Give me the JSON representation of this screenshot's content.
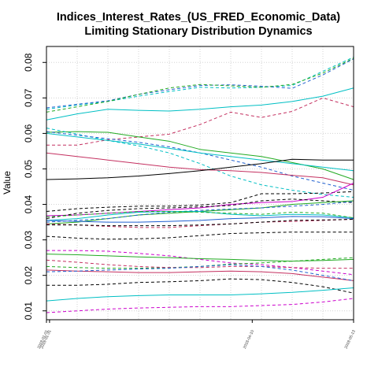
{
  "chart_data": {
    "type": "line",
    "title": "Indices_Interest_Rates_(US_FRED_Economic_Data)",
    "subtitle": "Limiting Stationary Distribution Dynamics",
    "xlabel": "",
    "ylabel": "Value",
    "ylim": [
      0.0075,
      0.0845
    ],
    "xlim": [
      0,
      10
    ],
    "y_ticks": [
      "0.01",
      "0.02",
      "0.03",
      "0.04",
      "0.05",
      "0.06",
      "0.07",
      "0.08"
    ],
    "x_ticks": [
      {
        "pos": 0,
        "label": "2018-01-01"
      },
      {
        "pos": 0.1,
        "label": "2018-01-31"
      },
      {
        "pos": 6.7,
        "label": "2018-04-10"
      },
      {
        "pos": 10,
        "label": "2018-05-13"
      }
    ],
    "grid": true,
    "x": [
      0,
      1,
      2,
      3,
      4,
      5,
      6,
      7,
      8,
      9,
      10
    ],
    "series": [
      {
        "color": "#00BFC4",
        "dash": "dashed",
        "values": [
          0.0668,
          0.068,
          0.069,
          0.0705,
          0.0718,
          0.073,
          0.0728,
          0.073,
          0.0735,
          0.0775,
          0.0815
        ]
      },
      {
        "color": "#00BFC4",
        "dash": "solid",
        "values": [
          0.0638,
          0.0655,
          0.0668,
          0.0665,
          0.0663,
          0.0668,
          0.0675,
          0.068,
          0.069,
          0.0705,
          0.0728
        ]
      },
      {
        "color": "#2060D0",
        "dash": "dashed",
        "values": [
          0.0672,
          0.0682,
          0.0692,
          0.071,
          0.0723,
          0.0735,
          0.0737,
          0.0733,
          0.0727,
          0.0765,
          0.081
        ]
      },
      {
        "color": "#22AA22",
        "dash": "dashed",
        "values": [
          0.066,
          0.0675,
          0.069,
          0.071,
          0.0728,
          0.0738,
          0.0734,
          0.073,
          0.0738,
          0.077,
          0.0812
        ]
      },
      {
        "color": "#C43060",
        "dash": "dashed",
        "values": [
          0.0567,
          0.0567,
          0.0582,
          0.059,
          0.0598,
          0.0625,
          0.066,
          0.0645,
          0.0662,
          0.07,
          0.0675
        ]
      },
      {
        "color": "#22AA22",
        "dash": "solid",
        "values": [
          0.0603,
          0.0605,
          0.0603,
          0.059,
          0.0578,
          0.0555,
          0.0545,
          0.0535,
          0.0518,
          0.05,
          0.047
        ]
      },
      {
        "color": "#00BFC4",
        "dash": "dashed",
        "values": [
          0.0615,
          0.0598,
          0.058,
          0.0565,
          0.0545,
          0.0515,
          0.048,
          0.0455,
          0.044,
          0.0428,
          0.042
        ]
      },
      {
        "color": "#2060D0",
        "dash": "dashed",
        "values": [
          0.0605,
          0.0595,
          0.0585,
          0.0575,
          0.0562,
          0.0545,
          0.0525,
          0.0505,
          0.048,
          0.046,
          0.044
        ]
      },
      {
        "color": "#00BFC4",
        "dash": "solid",
        "values": [
          0.06,
          0.059,
          0.058,
          0.057,
          0.0558,
          0.0545,
          0.0535,
          0.0525,
          0.0515,
          0.0505,
          0.0495
        ]
      },
      {
        "color": "#C43060",
        "dash": "solid",
        "values": [
          0.0545,
          0.0535,
          0.0525,
          0.0515,
          0.0505,
          0.0498,
          0.0495,
          0.049,
          0.0482,
          0.0475,
          0.0455
        ]
      },
      {
        "color": "#000000",
        "dash": "solid",
        "values": [
          0.047,
          0.0472,
          0.0475,
          0.048,
          0.0487,
          0.0495,
          0.0505,
          0.0515,
          0.0527,
          0.0525,
          0.0525
        ]
      },
      {
        "color": "#000000",
        "dash": "dashed",
        "values": [
          0.038,
          0.0388,
          0.0392,
          0.0395,
          0.0395,
          0.0398,
          0.0405,
          0.043,
          0.043,
          0.0432,
          0.0436
        ]
      },
      {
        "color": "#CC00CC",
        "dash": "solid",
        "values": [
          0.0368,
          0.037,
          0.0375,
          0.038,
          0.0385,
          0.039,
          0.04,
          0.0405,
          0.0408,
          0.042,
          0.046
        ]
      },
      {
        "color": "#000000",
        "dash": "dashed",
        "values": [
          0.036,
          0.0375,
          0.0383,
          0.0388,
          0.039,
          0.0393,
          0.0397,
          0.041,
          0.0415,
          0.041,
          0.0405
        ]
      },
      {
        "color": "#22AA22",
        "dash": "solid",
        "values": [
          0.0345,
          0.035,
          0.036,
          0.037,
          0.0375,
          0.038,
          0.0385,
          0.039,
          0.04,
          0.0405,
          0.041
        ]
      },
      {
        "color": "#2060D0",
        "dash": "dashed",
        "values": [
          0.035,
          0.0355,
          0.036,
          0.037,
          0.0378,
          0.0383,
          0.0387,
          0.039,
          0.0395,
          0.04,
          0.0408
        ]
      },
      {
        "color": "#00BFC4",
        "dash": "solid",
        "values": [
          0.0355,
          0.036,
          0.037,
          0.0378,
          0.038,
          0.038,
          0.0372,
          0.0368,
          0.0372,
          0.037,
          0.0362
        ]
      },
      {
        "color": "#22AA22",
        "dash": "dashed",
        "values": [
          0.0365,
          0.037,
          0.0375,
          0.038,
          0.038,
          0.0378,
          0.0375,
          0.0372,
          0.0378,
          0.0375,
          0.0362
        ]
      },
      {
        "color": "#2060D0",
        "dash": "solid",
        "values": [
          0.0355,
          0.0352,
          0.035,
          0.035,
          0.0352,
          0.0355,
          0.036,
          0.0362,
          0.0366,
          0.0365,
          0.036
        ]
      },
      {
        "color": "#C43060",
        "dash": "dashed",
        "values": [
          0.0345,
          0.0342,
          0.0338,
          0.0335,
          0.0335,
          0.034,
          0.0345,
          0.035,
          0.0352,
          0.0355,
          0.0358
        ]
      },
      {
        "color": "#000000",
        "dash": "dashed",
        "values": [
          0.0342,
          0.0342,
          0.034,
          0.034,
          0.034,
          0.0342,
          0.0345,
          0.035,
          0.0355,
          0.0356,
          0.0358
        ]
      },
      {
        "color": "#000000",
        "dash": "dashed",
        "values": [
          0.031,
          0.0305,
          0.0302,
          0.0303,
          0.0306,
          0.0312,
          0.0318,
          0.032,
          0.0322,
          0.0322,
          0.0322
        ]
      },
      {
        "color": "#CC00CC",
        "dash": "dashed",
        "values": [
          0.027,
          0.027,
          0.0268,
          0.0262,
          0.0255,
          0.0245,
          0.0235,
          0.023,
          0.0222,
          0.0212,
          0.0202
        ]
      },
      {
        "color": "#22AA22",
        "dash": "solid",
        "values": [
          0.026,
          0.0258,
          0.0255,
          0.0252,
          0.025,
          0.0247,
          0.0245,
          0.0242,
          0.024,
          0.0242,
          0.0245
        ]
      },
      {
        "color": "#22AA22",
        "dash": "dashed",
        "values": [
          0.0225,
          0.0222,
          0.022,
          0.022,
          0.0222,
          0.0225,
          0.0232,
          0.0235,
          0.024,
          0.0245,
          0.025
        ]
      },
      {
        "color": "#C43060",
        "dash": "dashed",
        "values": [
          0.0243,
          0.0237,
          0.023,
          0.0225,
          0.0222,
          0.0222,
          0.0225,
          0.0225,
          0.0222,
          0.022,
          0.022
        ]
      },
      {
        "color": "#C43060",
        "dash": "solid",
        "values": [
          0.0215,
          0.0212,
          0.021,
          0.0208,
          0.0208,
          0.021,
          0.0212,
          0.021,
          0.0205,
          0.0195,
          0.0185
        ]
      },
      {
        "color": "#2060D0",
        "dash": "dashed",
        "values": [
          0.021,
          0.0212,
          0.0215,
          0.0218,
          0.022,
          0.0225,
          0.023,
          0.0225,
          0.0215,
          0.02,
          0.0185
        ]
      },
      {
        "color": "#000000",
        "dash": "dashed",
        "values": [
          0.0172,
          0.0172,
          0.0175,
          0.018,
          0.0182,
          0.0185,
          0.019,
          0.0188,
          0.018,
          0.0168,
          0.015
        ]
      },
      {
        "color": "#00BFC4",
        "dash": "solid",
        "values": [
          0.0128,
          0.0135,
          0.014,
          0.0143,
          0.0145,
          0.0145,
          0.0145,
          0.0148,
          0.0152,
          0.0158,
          0.0165
        ]
      },
      {
        "color": "#CC00CC",
        "dash": "dashed",
        "values": [
          0.0095,
          0.01,
          0.0105,
          0.0108,
          0.011,
          0.0112,
          0.0112,
          0.0115,
          0.0118,
          0.0125,
          0.0135
        ]
      }
    ]
  }
}
